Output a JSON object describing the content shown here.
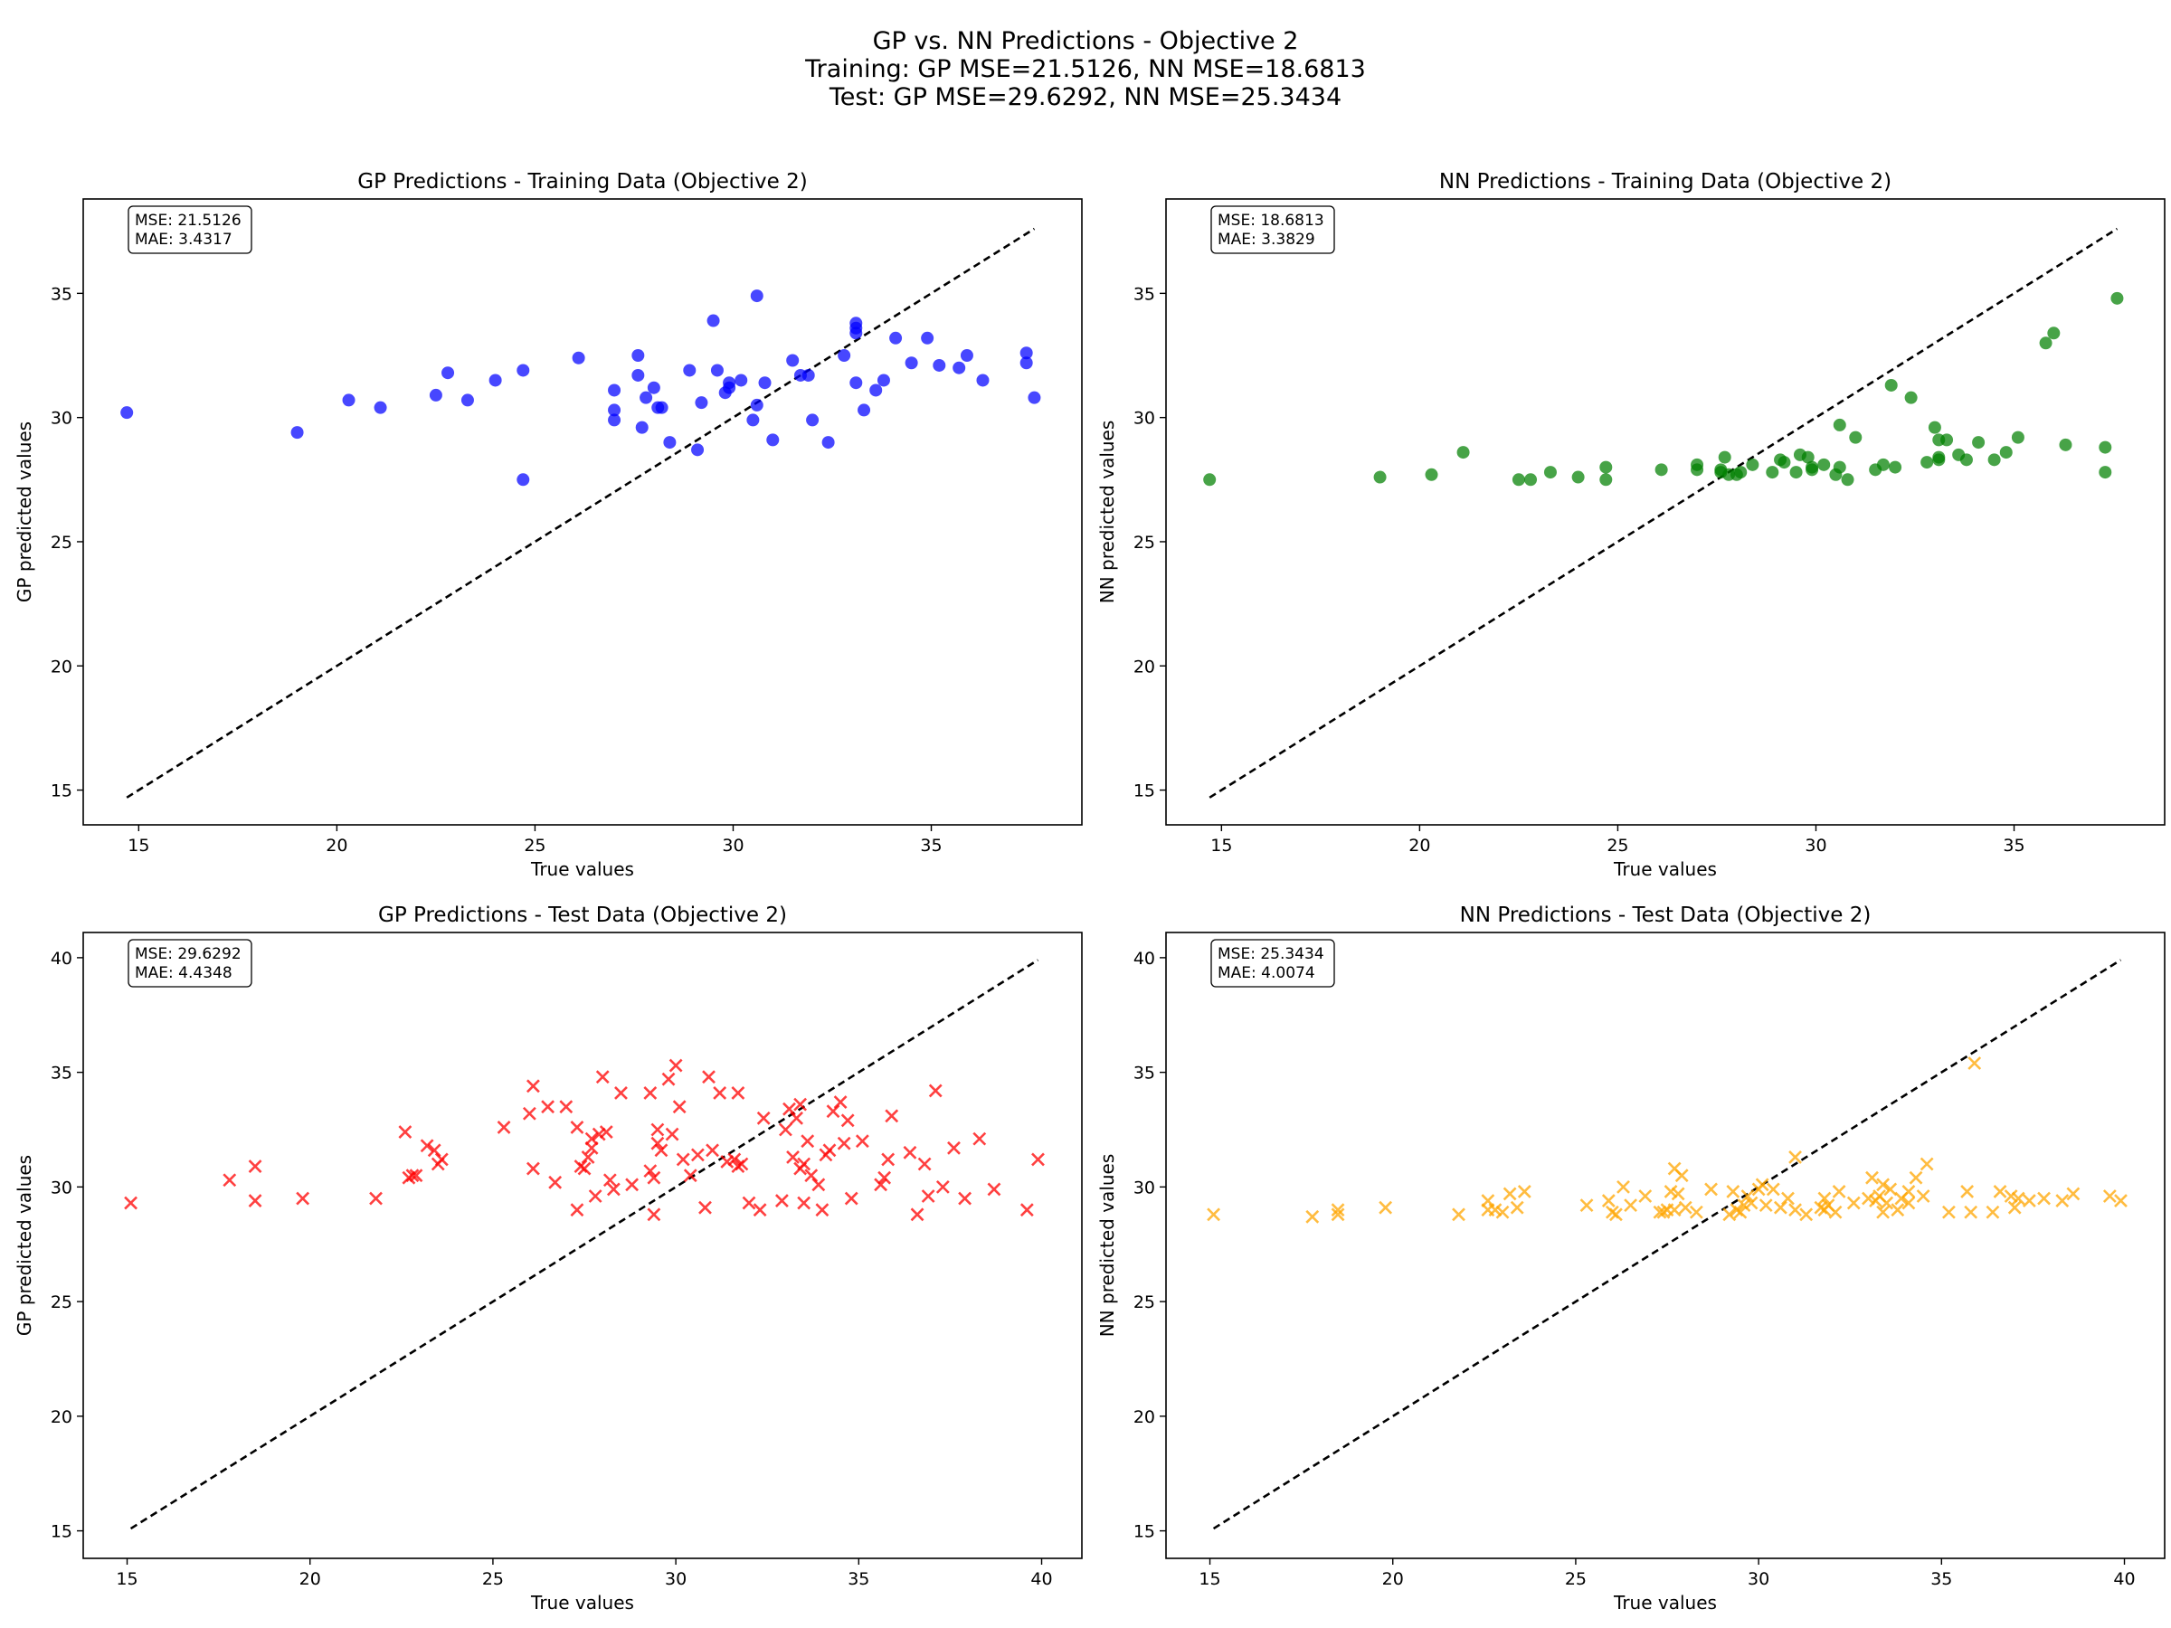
{
  "figure": {
    "suptitle": [
      "GP vs. NN Predictions - Objective 2",
      "Training: GP MSE=21.5126, NN MSE=18.6813",
      "Test: GP MSE=29.6292, NN MSE=25.3434"
    ]
  },
  "chart_data": [
    {
      "type": "scatter",
      "title": "GP Predictions - Training Data (Objective 2)",
      "xlabel": "True values",
      "ylabel": "GP predicted values",
      "marker": "circle",
      "color": "#0000ff",
      "stats": [
        "MSE: 21.5126",
        "MAE: 3.4317"
      ],
      "xlim": [
        13.6,
        38.8
      ],
      "ylim": [
        13.6,
        38.8
      ],
      "xticks": [
        15,
        20,
        25,
        30,
        35
      ],
      "yticks": [
        15,
        20,
        25,
        30,
        35
      ],
      "diagonal": [
        14.7,
        37.6
      ],
      "points": [
        [
          14.7,
          30.2
        ],
        [
          19.0,
          29.4
        ],
        [
          20.3,
          30.7
        ],
        [
          21.1,
          30.4
        ],
        [
          22.5,
          30.9
        ],
        [
          22.8,
          31.8
        ],
        [
          23.3,
          30.7
        ],
        [
          24.0,
          31.5
        ],
        [
          24.7,
          31.9
        ],
        [
          24.7,
          27.5
        ],
        [
          26.1,
          32.4
        ],
        [
          27.0,
          31.1
        ],
        [
          27.0,
          30.3
        ],
        [
          27.0,
          29.9
        ],
        [
          27.6,
          32.5
        ],
        [
          27.6,
          31.7
        ],
        [
          27.7,
          29.6
        ],
        [
          27.8,
          30.8
        ],
        [
          28.0,
          31.2
        ],
        [
          28.1,
          30.4
        ],
        [
          28.2,
          30.4
        ],
        [
          28.4,
          29.0
        ],
        [
          28.9,
          31.9
        ],
        [
          29.1,
          28.7
        ],
        [
          29.2,
          30.6
        ],
        [
          29.5,
          33.9
        ],
        [
          29.6,
          31.9
        ],
        [
          29.8,
          31.0
        ],
        [
          29.9,
          31.2
        ],
        [
          29.9,
          31.4
        ],
        [
          30.2,
          31.5
        ],
        [
          30.5,
          29.9
        ],
        [
          30.6,
          30.5
        ],
        [
          30.6,
          34.9
        ],
        [
          30.8,
          31.4
        ],
        [
          31.0,
          29.1
        ],
        [
          31.5,
          32.3
        ],
        [
          31.7,
          31.7
        ],
        [
          31.9,
          31.7
        ],
        [
          32.0,
          29.9
        ],
        [
          32.4,
          29.0
        ],
        [
          32.8,
          32.5
        ],
        [
          33.1,
          33.4
        ],
        [
          33.1,
          33.6
        ],
        [
          33.1,
          33.8
        ],
        [
          33.1,
          31.4
        ],
        [
          33.3,
          30.3
        ],
        [
          33.6,
          31.1
        ],
        [
          33.8,
          31.5
        ],
        [
          34.1,
          33.2
        ],
        [
          34.5,
          32.2
        ],
        [
          34.9,
          33.2
        ],
        [
          35.2,
          32.1
        ],
        [
          35.7,
          32.0
        ],
        [
          35.9,
          32.5
        ],
        [
          36.3,
          31.5
        ],
        [
          37.4,
          32.6
        ],
        [
          37.4,
          32.2
        ],
        [
          37.6,
          30.8
        ]
      ]
    },
    {
      "type": "scatter",
      "title": "NN Predictions - Training Data (Objective 2)",
      "xlabel": "True values",
      "ylabel": "NN predicted values",
      "marker": "circle",
      "color": "#008000",
      "stats": [
        "MSE: 18.6813",
        "MAE: 3.3829"
      ],
      "xlim": [
        13.6,
        38.8
      ],
      "ylim": [
        13.6,
        38.8
      ],
      "xticks": [
        15,
        20,
        25,
        30,
        35
      ],
      "yticks": [
        15,
        20,
        25,
        30,
        35
      ],
      "diagonal": [
        14.7,
        37.6
      ],
      "points": [
        [
          14.7,
          27.5
        ],
        [
          19.0,
          27.6
        ],
        [
          20.3,
          27.7
        ],
        [
          21.1,
          28.6
        ],
        [
          22.5,
          27.5
        ],
        [
          22.8,
          27.5
        ],
        [
          23.3,
          27.8
        ],
        [
          24.0,
          27.6
        ],
        [
          24.7,
          28.0
        ],
        [
          24.7,
          27.5
        ],
        [
          26.1,
          27.9
        ],
        [
          27.0,
          28.1
        ],
        [
          27.0,
          27.9
        ],
        [
          27.6,
          27.9
        ],
        [
          27.6,
          27.8
        ],
        [
          27.7,
          28.4
        ],
        [
          27.8,
          27.7
        ],
        [
          28.0,
          27.7
        ],
        [
          28.1,
          27.8
        ],
        [
          28.4,
          28.1
        ],
        [
          28.9,
          27.8
        ],
        [
          29.1,
          28.3
        ],
        [
          29.2,
          28.2
        ],
        [
          29.5,
          27.8
        ],
        [
          29.6,
          28.5
        ],
        [
          29.8,
          28.4
        ],
        [
          29.9,
          27.9
        ],
        [
          29.9,
          28.0
        ],
        [
          30.2,
          28.1
        ],
        [
          30.5,
          27.7
        ],
        [
          30.6,
          29.7
        ],
        [
          30.6,
          28.0
        ],
        [
          30.8,
          27.5
        ],
        [
          31.0,
          29.2
        ],
        [
          31.5,
          27.9
        ],
        [
          31.7,
          28.1
        ],
        [
          31.9,
          31.3
        ],
        [
          32.0,
          28.0
        ],
        [
          32.4,
          30.8
        ],
        [
          32.8,
          28.2
        ],
        [
          33.0,
          29.6
        ],
        [
          33.1,
          28.4
        ],
        [
          33.1,
          28.3
        ],
        [
          33.1,
          29.1
        ],
        [
          33.3,
          29.1
        ],
        [
          33.6,
          28.5
        ],
        [
          33.8,
          28.3
        ],
        [
          34.1,
          29.0
        ],
        [
          34.5,
          28.3
        ],
        [
          34.8,
          28.6
        ],
        [
          35.1,
          29.2
        ],
        [
          35.8,
          33.0
        ],
        [
          36.0,
          33.4
        ],
        [
          36.3,
          28.9
        ],
        [
          37.3,
          28.8
        ],
        [
          37.3,
          27.8
        ],
        [
          37.6,
          34.8
        ]
      ]
    },
    {
      "type": "scatter",
      "title": "GP Predictions - Test Data (Objective 2)",
      "xlabel": "True values",
      "ylabel": "GP predicted values",
      "marker": "x",
      "color": "#ff0000",
      "stats": [
        "MSE: 29.6292",
        "MAE: 4.4348"
      ],
      "xlim": [
        13.8,
        41.1
      ],
      "ylim": [
        13.8,
        41.1
      ],
      "xticks": [
        15,
        20,
        25,
        30,
        35,
        40
      ],
      "yticks": [
        15,
        20,
        25,
        30,
        35,
        40
      ],
      "diagonal": [
        15.1,
        39.9
      ],
      "points": [
        [
          15.1,
          29.3
        ],
        [
          17.8,
          30.3
        ],
        [
          18.5,
          30.9
        ],
        [
          18.5,
          29.4
        ],
        [
          19.8,
          29.5
        ],
        [
          21.8,
          29.5
        ],
        [
          22.6,
          32.4
        ],
        [
          22.7,
          30.4
        ],
        [
          22.8,
          30.5
        ],
        [
          22.9,
          30.5
        ],
        [
          23.2,
          31.8
        ],
        [
          23.4,
          31.6
        ],
        [
          23.5,
          31.0
        ],
        [
          23.6,
          31.2
        ],
        [
          25.3,
          32.6
        ],
        [
          26.0,
          33.2
        ],
        [
          26.1,
          34.4
        ],
        [
          26.1,
          30.8
        ],
        [
          26.5,
          33.5
        ],
        [
          26.7,
          30.2
        ],
        [
          27.0,
          33.5
        ],
        [
          27.3,
          32.6
        ],
        [
          27.3,
          29.0
        ],
        [
          27.4,
          30.9
        ],
        [
          27.5,
          30.8
        ],
        [
          27.6,
          31.3
        ],
        [
          27.7,
          31.7
        ],
        [
          27.7,
          32.1
        ],
        [
          27.8,
          29.6
        ],
        [
          27.9,
          32.3
        ],
        [
          28.0,
          34.8
        ],
        [
          28.1,
          32.4
        ],
        [
          28.2,
          30.3
        ],
        [
          28.3,
          29.9
        ],
        [
          28.5,
          34.1
        ],
        [
          28.8,
          30.1
        ],
        [
          29.3,
          34.1
        ],
        [
          29.3,
          30.7
        ],
        [
          29.4,
          28.8
        ],
        [
          29.4,
          30.4
        ],
        [
          29.5,
          31.9
        ],
        [
          29.5,
          32.5
        ],
        [
          29.6,
          31.6
        ],
        [
          29.8,
          34.7
        ],
        [
          29.9,
          32.3
        ],
        [
          30.0,
          35.3
        ],
        [
          30.1,
          33.5
        ],
        [
          30.2,
          31.2
        ],
        [
          30.4,
          30.5
        ],
        [
          30.6,
          31.4
        ],
        [
          30.8,
          29.1
        ],
        [
          30.9,
          34.8
        ],
        [
          31.0,
          31.6
        ],
        [
          31.2,
          34.1
        ],
        [
          31.4,
          31.1
        ],
        [
          31.6,
          31.2
        ],
        [
          31.7,
          30.9
        ],
        [
          31.7,
          34.1
        ],
        [
          31.8,
          31.0
        ],
        [
          32.0,
          29.3
        ],
        [
          32.3,
          29.0
        ],
        [
          32.4,
          33.0
        ],
        [
          32.9,
          29.4
        ],
        [
          33.0,
          32.5
        ],
        [
          33.1,
          33.4
        ],
        [
          33.2,
          31.3
        ],
        [
          33.3,
          33.0
        ],
        [
          33.4,
          30.8
        ],
        [
          33.4,
          33.6
        ],
        [
          33.5,
          29.3
        ],
        [
          33.5,
          31.0
        ],
        [
          33.6,
          32.0
        ],
        [
          33.7,
          30.5
        ],
        [
          33.9,
          30.1
        ],
        [
          34.0,
          29.0
        ],
        [
          34.1,
          31.4
        ],
        [
          34.2,
          31.6
        ],
        [
          34.3,
          33.3
        ],
        [
          34.5,
          33.7
        ],
        [
          34.6,
          31.9
        ],
        [
          34.7,
          32.9
        ],
        [
          34.8,
          29.5
        ],
        [
          35.1,
          32.0
        ],
        [
          35.6,
          30.1
        ],
        [
          35.7,
          30.4
        ],
        [
          35.8,
          31.2
        ],
        [
          35.9,
          33.1
        ],
        [
          36.4,
          31.5
        ],
        [
          36.6,
          28.8
        ],
        [
          36.8,
          31.0
        ],
        [
          36.9,
          29.6
        ],
        [
          37.1,
          34.2
        ],
        [
          37.3,
          30.0
        ],
        [
          37.6,
          31.7
        ],
        [
          37.9,
          29.5
        ],
        [
          38.3,
          32.1
        ],
        [
          38.7,
          29.9
        ],
        [
          39.6,
          29.0
        ],
        [
          39.9,
          31.2
        ]
      ]
    },
    {
      "type": "scatter",
      "title": "NN Predictions - Test Data (Objective 2)",
      "xlabel": "True values",
      "ylabel": "NN predicted values",
      "marker": "x",
      "color": "#ffa500",
      "stats": [
        "MSE: 25.3434",
        "MAE: 4.0074"
      ],
      "xlim": [
        13.8,
        41.1
      ],
      "ylim": [
        13.8,
        41.1
      ],
      "xticks": [
        15,
        20,
        25,
        30,
        35,
        40
      ],
      "yticks": [
        15,
        20,
        25,
        30,
        35,
        40
      ],
      "diagonal": [
        15.1,
        39.9
      ],
      "points": [
        [
          15.1,
          28.8
        ],
        [
          17.8,
          28.7
        ],
        [
          18.5,
          28.8
        ],
        [
          18.5,
          29.0
        ],
        [
          19.8,
          29.1
        ],
        [
          21.8,
          28.8
        ],
        [
          22.6,
          29.0
        ],
        [
          22.6,
          29.4
        ],
        [
          22.8,
          29.0
        ],
        [
          23.0,
          28.9
        ],
        [
          23.2,
          29.7
        ],
        [
          23.4,
          29.1
        ],
        [
          23.6,
          29.8
        ],
        [
          25.3,
          29.2
        ],
        [
          25.9,
          29.4
        ],
        [
          26.0,
          28.9
        ],
        [
          26.1,
          28.8
        ],
        [
          26.3,
          30.0
        ],
        [
          26.5,
          29.2
        ],
        [
          26.9,
          29.6
        ],
        [
          27.3,
          28.9
        ],
        [
          27.4,
          28.9
        ],
        [
          27.5,
          29.0
        ],
        [
          27.6,
          29.8
        ],
        [
          27.7,
          30.8
        ],
        [
          27.7,
          29.0
        ],
        [
          27.8,
          29.7
        ],
        [
          27.9,
          30.5
        ],
        [
          28.0,
          29.1
        ],
        [
          28.3,
          28.9
        ],
        [
          28.7,
          29.9
        ],
        [
          29.2,
          28.8
        ],
        [
          29.3,
          29.8
        ],
        [
          29.4,
          29.0
        ],
        [
          29.5,
          28.9
        ],
        [
          29.6,
          29.2
        ],
        [
          29.7,
          29.6
        ],
        [
          29.8,
          29.3
        ],
        [
          30.0,
          29.9
        ],
        [
          30.1,
          30.1
        ],
        [
          30.2,
          29.2
        ],
        [
          30.4,
          29.9
        ],
        [
          30.6,
          29.1
        ],
        [
          30.8,
          29.5
        ],
        [
          31.0,
          29.0
        ],
        [
          31.0,
          31.3
        ],
        [
          31.3,
          28.8
        ],
        [
          31.7,
          29.1
        ],
        [
          31.8,
          29.5
        ],
        [
          31.8,
          29.0
        ],
        [
          31.9,
          29.2
        ],
        [
          32.1,
          28.9
        ],
        [
          32.2,
          29.8
        ],
        [
          32.6,
          29.3
        ],
        [
          33.0,
          29.5
        ],
        [
          33.1,
          30.4
        ],
        [
          33.2,
          29.4
        ],
        [
          33.3,
          29.6
        ],
        [
          33.4,
          30.1
        ],
        [
          33.4,
          28.9
        ],
        [
          33.5,
          29.3
        ],
        [
          33.6,
          29.9
        ],
        [
          33.8,
          29.0
        ],
        [
          33.9,
          29.5
        ],
        [
          34.1,
          29.8
        ],
        [
          34.1,
          29.3
        ],
        [
          34.3,
          30.4
        ],
        [
          34.5,
          29.6
        ],
        [
          34.6,
          31.0
        ],
        [
          35.2,
          28.9
        ],
        [
          35.7,
          29.8
        ],
        [
          35.8,
          28.9
        ],
        [
          35.9,
          35.4
        ],
        [
          36.4,
          28.9
        ],
        [
          36.6,
          29.8
        ],
        [
          36.9,
          29.6
        ],
        [
          37.0,
          29.1
        ],
        [
          37.1,
          29.5
        ],
        [
          37.4,
          29.4
        ],
        [
          37.8,
          29.5
        ],
        [
          38.3,
          29.4
        ],
        [
          38.6,
          29.7
        ],
        [
          39.6,
          29.6
        ],
        [
          39.9,
          29.4
        ]
      ]
    }
  ]
}
